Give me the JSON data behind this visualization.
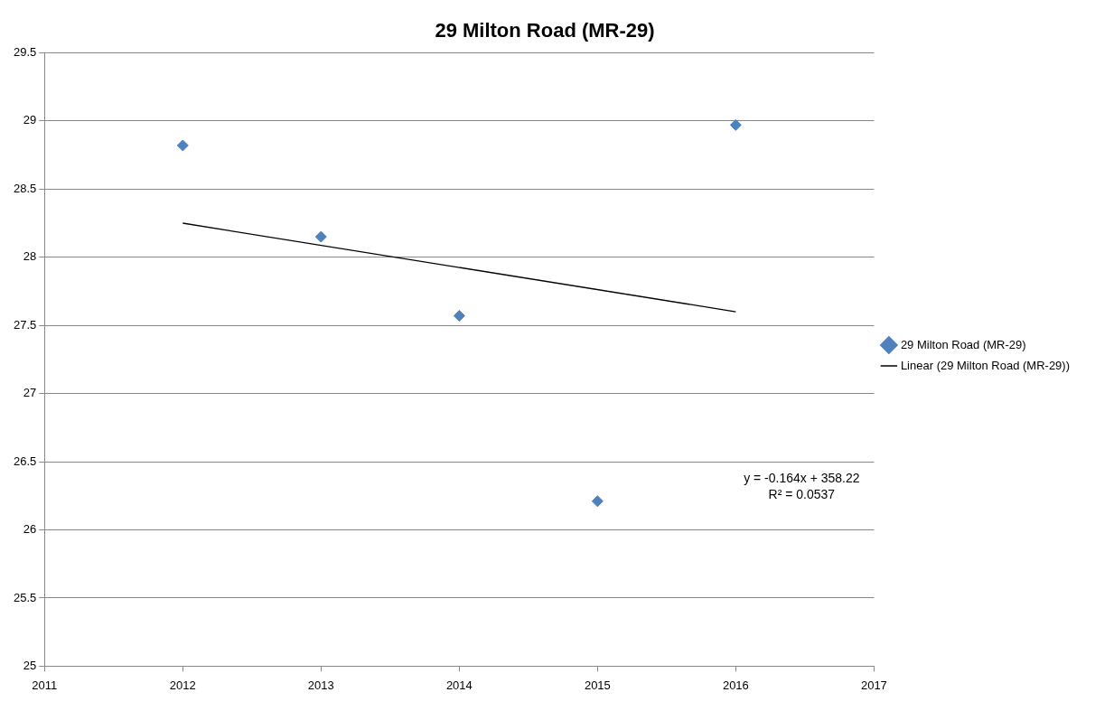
{
  "chart_data": {
    "type": "scatter",
    "title": "29 Milton Road (MR-29)",
    "series": [
      {
        "name": "29 Milton Road (MR-29)",
        "type": "scatter",
        "color": "#4f81bd",
        "marker": "diamond",
        "x": [
          2012,
          2013,
          2014,
          2015,
          2016
        ],
        "values": [
          28.82,
          28.15,
          27.57,
          26.21,
          28.97
        ]
      },
      {
        "name": "Linear (29 Milton Road (MR-29))",
        "type": "line",
        "color": "#000000",
        "marker": "none",
        "line_style": "solid",
        "x": [
          2012,
          2016
        ],
        "values": [
          28.25,
          27.6
        ]
      }
    ],
    "xlim": [
      2011,
      2017
    ],
    "xticks": [
      2011,
      2012,
      2013,
      2014,
      2015,
      2016,
      2017
    ],
    "ylim": [
      25,
      29.5
    ],
    "yticks": [
      25,
      25.5,
      26,
      26.5,
      27,
      27.5,
      28,
      28.5,
      29,
      29.5
    ],
    "grid": "y",
    "legend": "right",
    "annotations": [
      "y = -0.164x + 358.22",
      "R² = 0.0537"
    ]
  }
}
